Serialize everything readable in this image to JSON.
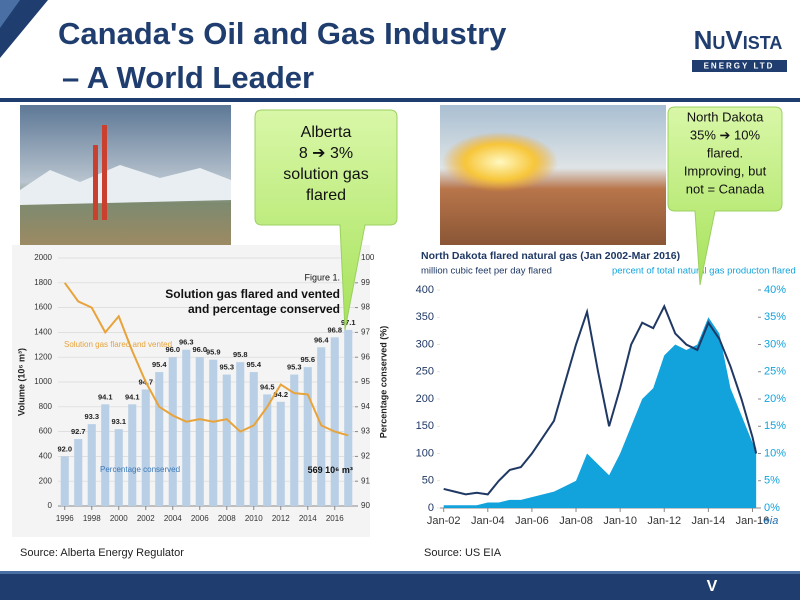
{
  "header": {
    "title": [
      "Canada's Oil and Gas Industry",
      "– A World Leader"
    ],
    "logo": "NuVista",
    "logo_sub": "ENERGY LTD"
  },
  "callouts": [
    {
      "lines": [
        "Alberta",
        "8 ➔ 3%",
        "solution gas",
        "flared"
      ]
    },
    {
      "lines": [
        "North Dakota",
        "35% ➔ 10%",
        "flared.",
        "Improving, but",
        "not = Canada"
      ]
    }
  ],
  "sources": [
    "Source:  Alberta Energy Regulator",
    "Source:  US EIA"
  ],
  "footer": {
    "logo": "V"
  },
  "chart_data": [
    {
      "type": "bar",
      "title": "Figure 1.",
      "subtitle": [
        "Solution gas flared and vented",
        "and percentage conserved"
      ],
      "ylabel": "Volume (10⁶ m³)",
      "y2label": "Percentage conserved (%)",
      "annotation": "569 10⁶ m³",
      "x": [
        1996,
        1997,
        1998,
        1999,
        2000,
        2001,
        2002,
        2003,
        2004,
        2005,
        2006,
        2007,
        2008,
        2009,
        2010,
        2011,
        2012,
        2013,
        2014,
        2015,
        2016,
        2017
      ],
      "xlim": [
        1995.5,
        2017.5
      ],
      "xticks": [
        1996,
        1998,
        2000,
        2002,
        2004,
        2006,
        2008,
        2010,
        2012,
        2014,
        2016
      ],
      "ylim": [
        0,
        2000
      ],
      "yticks": [
        0,
        200,
        400,
        600,
        800,
        1000,
        1200,
        1400,
        1600,
        1800,
        2000
      ],
      "y2lim": [
        90,
        100
      ],
      "y2ticks": [
        90,
        91,
        92,
        93,
        94,
        95,
        96,
        97,
        98,
        99,
        100
      ],
      "series": [
        {
          "name": "Percentage conserved",
          "kind": "bar",
          "axis": "y2",
          "color": "#b9cfe5",
          "values": [
            92.0,
            92.7,
            93.3,
            94.1,
            93.1,
            94.1,
            94.7,
            95.4,
            96.0,
            96.3,
            96.0,
            95.9,
            95.3,
            95.8,
            95.4,
            94.5,
            94.2,
            95.3,
            95.6,
            96.4,
            96.8,
            97.1
          ],
          "value_labels": [
            "92.0",
            "92.7",
            "93.3",
            "94.1",
            "93.1",
            "94.1",
            "94.7",
            "95.4",
            "96.0",
            "96.3",
            "96.0",
            "95.9",
            "95.3",
            "95.8",
            "95.4",
            "94.5",
            "94.2",
            "95.3",
            "95.6",
            "96.4",
            "96.8",
            "97.1"
          ]
        },
        {
          "name": "Solution gas flared and vented",
          "kind": "line",
          "color": "#e8a33a",
          "values": [
            1800,
            1650,
            1600,
            1400,
            1530,
            1250,
            1000,
            800,
            730,
            680,
            700,
            680,
            700,
            600,
            650,
            800,
            980,
            910,
            900,
            650,
            600,
            569
          ]
        }
      ]
    },
    {
      "type": "area",
      "title": "North Dakota flared natural gas (Jan 2002-Mar 2016)",
      "x": [
        "2002-01",
        "2002-07",
        "2003-01",
        "2003-07",
        "2004-01",
        "2004-07",
        "2005-01",
        "2005-07",
        "2006-01",
        "2006-07",
        "2007-01",
        "2007-07",
        "2008-01",
        "2008-07",
        "2009-01",
        "2009-07",
        "2010-01",
        "2010-07",
        "2011-01",
        "2011-07",
        "2012-01",
        "2012-07",
        "2013-01",
        "2013-07",
        "2014-01",
        "2014-07",
        "2015-01",
        "2015-07",
        "2016-01",
        "2016-03"
      ],
      "xlim": [
        "2001-11",
        "2016-04"
      ],
      "xticks": [
        {
          "value": "2002-01",
          "label": "Jan-02"
        },
        {
          "value": "2004-01",
          "label": "Jan-04"
        },
        {
          "value": "2006-01",
          "label": "Jan-06"
        },
        {
          "value": "2008-01",
          "label": "Jan-08"
        },
        {
          "value": "2010-01",
          "label": "Jan-10"
        },
        {
          "value": "2012-01",
          "label": "Jan-12"
        },
        {
          "value": "2014-01",
          "label": "Jan-14"
        },
        {
          "value": "2016-01",
          "label": "Jan-16"
        }
      ],
      "ylim": [
        0,
        400
      ],
      "yticks": [
        0,
        50,
        100,
        150,
        200,
        250,
        300,
        350,
        400
      ],
      "y2lim": [
        0,
        40
      ],
      "y2ticks": [
        {
          "value": 0,
          "label": "0%"
        },
        {
          "value": 5,
          "label": "5%"
        },
        {
          "value": 10,
          "label": "10%"
        },
        {
          "value": 15,
          "label": "15%"
        },
        {
          "value": 20,
          "label": "20%"
        },
        {
          "value": 25,
          "label": "25%"
        },
        {
          "value": 30,
          "label": "30%"
        },
        {
          "value": 35,
          "label": "35%"
        },
        {
          "value": 40,
          "label": "40%"
        }
      ],
      "source_logo": "eia",
      "series": [
        {
          "name": "percent of total natural gas producton flared",
          "kind": "area",
          "axis": "y2",
          "color": "#12a3dd",
          "values": [
            0.5,
            0.5,
            0.5,
            0.5,
            1,
            1,
            1.5,
            1.5,
            2,
            2.5,
            3,
            4,
            5,
            10,
            8,
            6,
            10,
            15,
            20,
            22,
            28,
            30,
            29,
            30,
            35,
            32,
            22,
            17,
            12,
            11
          ]
        },
        {
          "name": "million cubic feet per day flared",
          "kind": "line",
          "color": "#1f3864",
          "values": [
            35,
            30,
            25,
            28,
            25,
            50,
            70,
            75,
            100,
            130,
            160,
            230,
            300,
            360,
            250,
            150,
            220,
            300,
            340,
            330,
            370,
            320,
            300,
            290,
            340,
            310,
            260,
            200,
            130,
            100
          ]
        }
      ]
    }
  ]
}
